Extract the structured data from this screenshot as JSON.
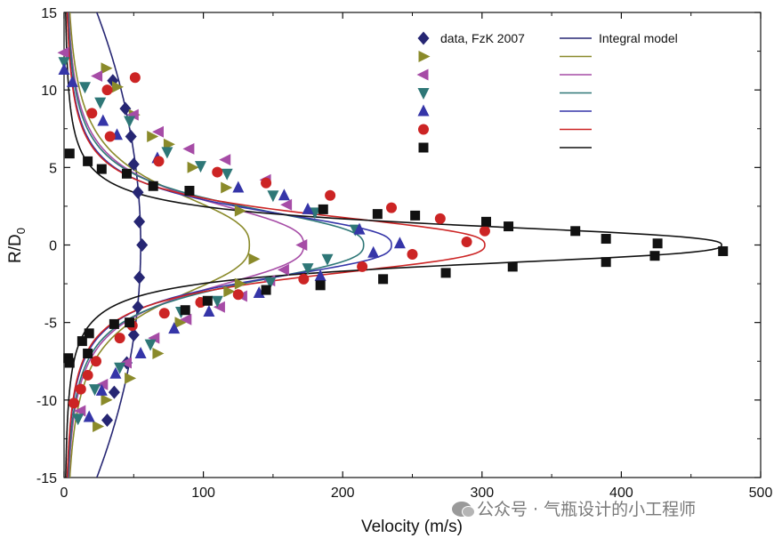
{
  "chart_data": {
    "type": "scatter",
    "xlabel": "Velocity (m/s)",
    "ylabel_main": "R/D",
    "ylabel_sub": "0",
    "xlim": [
      0,
      500
    ],
    "ylim": [
      -15,
      15
    ],
    "xticks": [
      0,
      100,
      200,
      300,
      400,
      500
    ],
    "yticks": [
      -15,
      -10,
      -5,
      0,
      5,
      10,
      15
    ],
    "legend_placement": "top-right",
    "legend": {
      "data_label": "data, FzK 2007",
      "model_label": "Integral model"
    },
    "series": [
      {
        "name": "data, FzK 2007",
        "marker": "diamond",
        "color": "#262673",
        "points": [
          [
            35,
            10.6
          ],
          [
            44,
            8.8
          ],
          [
            48,
            7.0
          ],
          [
            50,
            5.2
          ],
          [
            53,
            3.4
          ],
          [
            54,
            1.5
          ],
          [
            56,
            0
          ],
          [
            54,
            -2.1
          ],
          [
            53,
            -4.0
          ],
          [
            50,
            -5.8
          ],
          [
            45,
            -7.6
          ],
          [
            36,
            -9.5
          ],
          [
            31,
            -11.3
          ]
        ],
        "curve": {
          "vmax": 55,
          "w": 0,
          "hollow": false
        }
      },
      {
        "marker": "triangle-right",
        "color": "#8a8a2a",
        "points": [
          [
            30,
            11.4
          ],
          [
            38,
            10.2
          ],
          [
            50,
            8.4
          ],
          [
            63,
            7.0
          ],
          [
            75,
            6.5
          ],
          [
            92,
            5.0
          ],
          [
            116,
            3.7
          ],
          [
            126,
            2.2
          ],
          [
            136,
            -0.9
          ],
          [
            126,
            -2.5
          ],
          [
            118,
            -3.0
          ],
          [
            100,
            -3.7
          ],
          [
            83,
            -5.0
          ],
          [
            67,
            -7.0
          ],
          [
            47,
            -8.6
          ],
          [
            30,
            -10.0
          ],
          [
            24,
            -11.7
          ]
        ],
        "curve": {
          "vmax": 133,
          "w": 4.0
        }
      },
      {
        "marker": "triangle-left",
        "color": "#a64ca6",
        "points": [
          [
            0,
            12.4
          ],
          [
            24,
            10.9
          ],
          [
            50,
            8.4
          ],
          [
            68,
            7.3
          ],
          [
            90,
            6.2
          ],
          [
            116,
            5.5
          ],
          [
            145,
            4.2
          ],
          [
            160,
            2.6
          ],
          [
            171,
            0
          ],
          [
            158,
            -1.6
          ],
          [
            148,
            -2.3
          ],
          [
            128,
            -3.3
          ],
          [
            112,
            -4.0
          ],
          [
            88,
            -4.8
          ],
          [
            65,
            -6.0
          ],
          [
            45,
            -7.6
          ],
          [
            28,
            -9.0
          ],
          [
            12,
            -10.7
          ]
        ],
        "curve": {
          "vmax": 172,
          "w": 3.3
        }
      },
      {
        "marker": "triangle-down",
        "color": "#2e7777",
        "points": [
          [
            0,
            11.8
          ],
          [
            15,
            10.2
          ],
          [
            26,
            9.2
          ],
          [
            47,
            8.0
          ],
          [
            74,
            6.0
          ],
          [
            98,
            5.1
          ],
          [
            117,
            4.6
          ],
          [
            150,
            3.2
          ],
          [
            180,
            2.1
          ],
          [
            209,
            1.0
          ],
          [
            189,
            -0.9
          ],
          [
            175,
            -1.5
          ],
          [
            148,
            -2.4
          ],
          [
            110,
            -3.6
          ],
          [
            84,
            -4.3
          ],
          [
            62,
            -6.4
          ],
          [
            40,
            -7.9
          ],
          [
            22,
            -9.3
          ],
          [
            10,
            -11.2
          ]
        ],
        "curve": {
          "vmax": 215,
          "w": 2.9
        }
      },
      {
        "marker": "triangle-up",
        "color": "#3535a8",
        "points": [
          [
            0,
            11.3
          ],
          [
            6,
            10.5
          ],
          [
            28,
            8.0
          ],
          [
            38,
            7.1
          ],
          [
            67,
            5.6
          ],
          [
            125,
            3.7
          ],
          [
            158,
            3.2
          ],
          [
            175,
            2.3
          ],
          [
            212,
            1.0
          ],
          [
            241,
            0.1
          ],
          [
            222,
            -0.5
          ],
          [
            184,
            -2.0
          ],
          [
            140,
            -3.1
          ],
          [
            104,
            -4.3
          ],
          [
            79,
            -5.4
          ],
          [
            55,
            -7.0
          ],
          [
            37,
            -8.3
          ],
          [
            27,
            -9.4
          ],
          [
            18,
            -11.1
          ]
        ],
        "curve": {
          "vmax": 235,
          "w": 2.6
        }
      },
      {
        "marker": "circle",
        "color": "#cc2424",
        "points": [
          [
            51,
            10.8
          ],
          [
            31,
            10.0
          ],
          [
            20,
            8.5
          ],
          [
            33,
            7.0
          ],
          [
            68,
            5.4
          ],
          [
            110,
            4.7
          ],
          [
            145,
            4.0
          ],
          [
            191,
            3.2
          ],
          [
            235,
            2.4
          ],
          [
            270,
            1.7
          ],
          [
            302,
            0.9
          ],
          [
            289,
            0.2
          ],
          [
            250,
            -0.6
          ],
          [
            214,
            -1.4
          ],
          [
            172,
            -2.2
          ],
          [
            125,
            -3.2
          ],
          [
            98,
            -3.7
          ],
          [
            72,
            -4.4
          ],
          [
            49,
            -5.2
          ],
          [
            40,
            -6.0
          ],
          [
            23,
            -7.5
          ],
          [
            17,
            -8.4
          ],
          [
            12,
            -9.3
          ],
          [
            7,
            -10.2
          ]
        ],
        "curve": {
          "vmax": 302,
          "w": 2.3
        }
      },
      {
        "marker": "square",
        "color": "#111111",
        "points": [
          [
            4,
            5.9
          ],
          [
            17,
            5.4
          ],
          [
            27,
            4.9
          ],
          [
            45,
            4.6
          ],
          [
            64,
            3.8
          ],
          [
            90,
            3.5
          ],
          [
            186,
            2.3
          ],
          [
            225,
            2.0
          ],
          [
            252,
            1.9
          ],
          [
            303,
            1.5
          ],
          [
            319,
            1.2
          ],
          [
            367,
            0.9
          ],
          [
            389,
            0.4
          ],
          [
            426,
            0.1
          ],
          [
            473,
            -0.4
          ],
          [
            424,
            -0.7
          ],
          [
            389,
            -1.1
          ],
          [
            322,
            -1.4
          ],
          [
            274,
            -1.8
          ],
          [
            229,
            -2.2
          ],
          [
            184,
            -2.6
          ],
          [
            145,
            -2.9
          ],
          [
            103,
            -3.6
          ],
          [
            87,
            -4.2
          ],
          [
            47,
            -5.0
          ],
          [
            36,
            -5.1
          ],
          [
            18,
            -5.7
          ],
          [
            13,
            -6.2
          ],
          [
            17,
            -7.0
          ],
          [
            3,
            -7.3
          ],
          [
            4,
            -7.6
          ]
        ],
        "curve": {
          "vmax": 472,
          "w": 1.5
        }
      }
    ]
  },
  "watermark": {
    "text": "公众号 · 气瓶设计的小工程师"
  }
}
